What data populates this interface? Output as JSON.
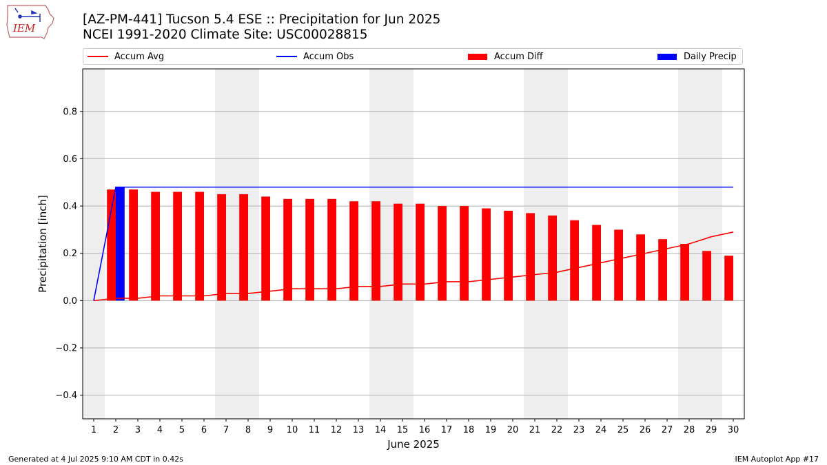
{
  "header": {
    "title_line1": "[AZ-PM-441] Tucson 5.4 ESE :: Precipitation for Jun 2025",
    "title_line2": "NCEI 1991-2020 Climate Site: USC00028815",
    "logo_text": "IEM"
  },
  "footer": {
    "generated": "Generated at 4 Jul 2025 9:10 AM CDT in 0.42s",
    "app": "IEM Autoplot App #17"
  },
  "colors": {
    "accum_avg": "#ff0000",
    "accum_obs": "#0000ff",
    "accum_diff": "#ff0000",
    "daily_precip": "#0000ff",
    "weekend_shade": "#eeeeee",
    "grid": "#b0b0b0"
  },
  "chart_data": {
    "type": "bar",
    "xlabel": "June 2025",
    "ylabel": "Precipitation [inch]",
    "ylim": [
      -0.5,
      0.98
    ],
    "xlim": [
      0.5,
      30.5
    ],
    "yticks": [
      -0.4,
      -0.2,
      0.0,
      0.2,
      0.4,
      0.6,
      0.8
    ],
    "ytick_labels": [
      "−0.4",
      "−0.2",
      "0.0",
      "0.2",
      "0.4",
      "0.6",
      "0.8"
    ],
    "grid": "horizontal",
    "legend": "top, above plot",
    "weekend_days": [
      1,
      7,
      8,
      14,
      15,
      21,
      22,
      28,
      29
    ],
    "days": [
      1,
      2,
      3,
      4,
      5,
      6,
      7,
      8,
      9,
      10,
      11,
      12,
      13,
      14,
      15,
      16,
      17,
      18,
      19,
      20,
      21,
      22,
      23,
      24,
      25,
      26,
      27,
      28,
      29,
      30
    ],
    "series": [
      {
        "name": "Accum Avg",
        "kind": "line",
        "values": [
          0.0,
          0.01,
          0.01,
          0.02,
          0.02,
          0.02,
          0.03,
          0.03,
          0.04,
          0.05,
          0.05,
          0.05,
          0.06,
          0.06,
          0.07,
          0.07,
          0.08,
          0.08,
          0.09,
          0.1,
          0.11,
          0.12,
          0.14,
          0.16,
          0.18,
          0.2,
          0.22,
          0.24,
          0.27,
          0.29
        ]
      },
      {
        "name": "Accum Obs",
        "kind": "line",
        "values": [
          0.0,
          0.48,
          0.48,
          0.48,
          0.48,
          0.48,
          0.48,
          0.48,
          0.48,
          0.48,
          0.48,
          0.48,
          0.48,
          0.48,
          0.48,
          0.48,
          0.48,
          0.48,
          0.48,
          0.48,
          0.48,
          0.48,
          0.48,
          0.48,
          0.48,
          0.48,
          0.48,
          0.48,
          0.48,
          0.48
        ]
      },
      {
        "name": "Accum Diff",
        "kind": "bar",
        "values": [
          0.0,
          0.47,
          0.47,
          0.46,
          0.46,
          0.46,
          0.45,
          0.45,
          0.44,
          0.43,
          0.43,
          0.43,
          0.42,
          0.42,
          0.41,
          0.41,
          0.4,
          0.4,
          0.39,
          0.38,
          0.37,
          0.36,
          0.34,
          0.32,
          0.3,
          0.28,
          0.26,
          0.24,
          0.21,
          0.19
        ]
      },
      {
        "name": "Daily Precip",
        "kind": "bar",
        "values": [
          0.0,
          0.48,
          0.0,
          0.0,
          0.0,
          0.0,
          0.0,
          0.0,
          0.0,
          0.0,
          0.0,
          0.0,
          0.0,
          0.0,
          0.0,
          0.0,
          0.0,
          0.0,
          0.0,
          0.0,
          0.0,
          0.0,
          0.0,
          0.0,
          0.0,
          0.0,
          0.0,
          0.0,
          0.0,
          0.0
        ]
      }
    ]
  }
}
